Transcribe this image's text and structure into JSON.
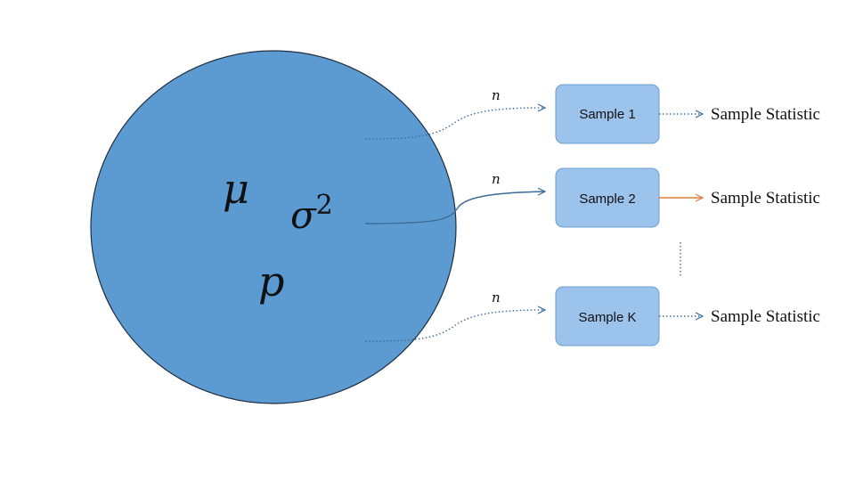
{
  "population": {
    "symbols": {
      "mu": "μ",
      "sigma": "σ",
      "sigma_exp": "2",
      "p": "p"
    }
  },
  "branches": [
    {
      "n_label": "n",
      "sample_label": "Sample 1",
      "statistic_label": "Sample Statistic",
      "link_style": "dotted",
      "arrow_color": "#3a6a96"
    },
    {
      "n_label": "n",
      "sample_label": "Sample 2",
      "statistic_label": "Sample Statistic",
      "link_style": "solid",
      "arrow_color": "#e07b39"
    },
    {
      "n_label": "n",
      "sample_label": "Sample K",
      "statistic_label": "Sample Statistic",
      "link_style": "dotted",
      "arrow_color": "#3a6a96"
    }
  ],
  "colors": {
    "population_fill": "#5b9bd1",
    "population_stroke": "#1f2f40",
    "sample_fill": "#9cc3eb",
    "sample_stroke": "#6d9fd0",
    "connector": "#3a6a96"
  }
}
